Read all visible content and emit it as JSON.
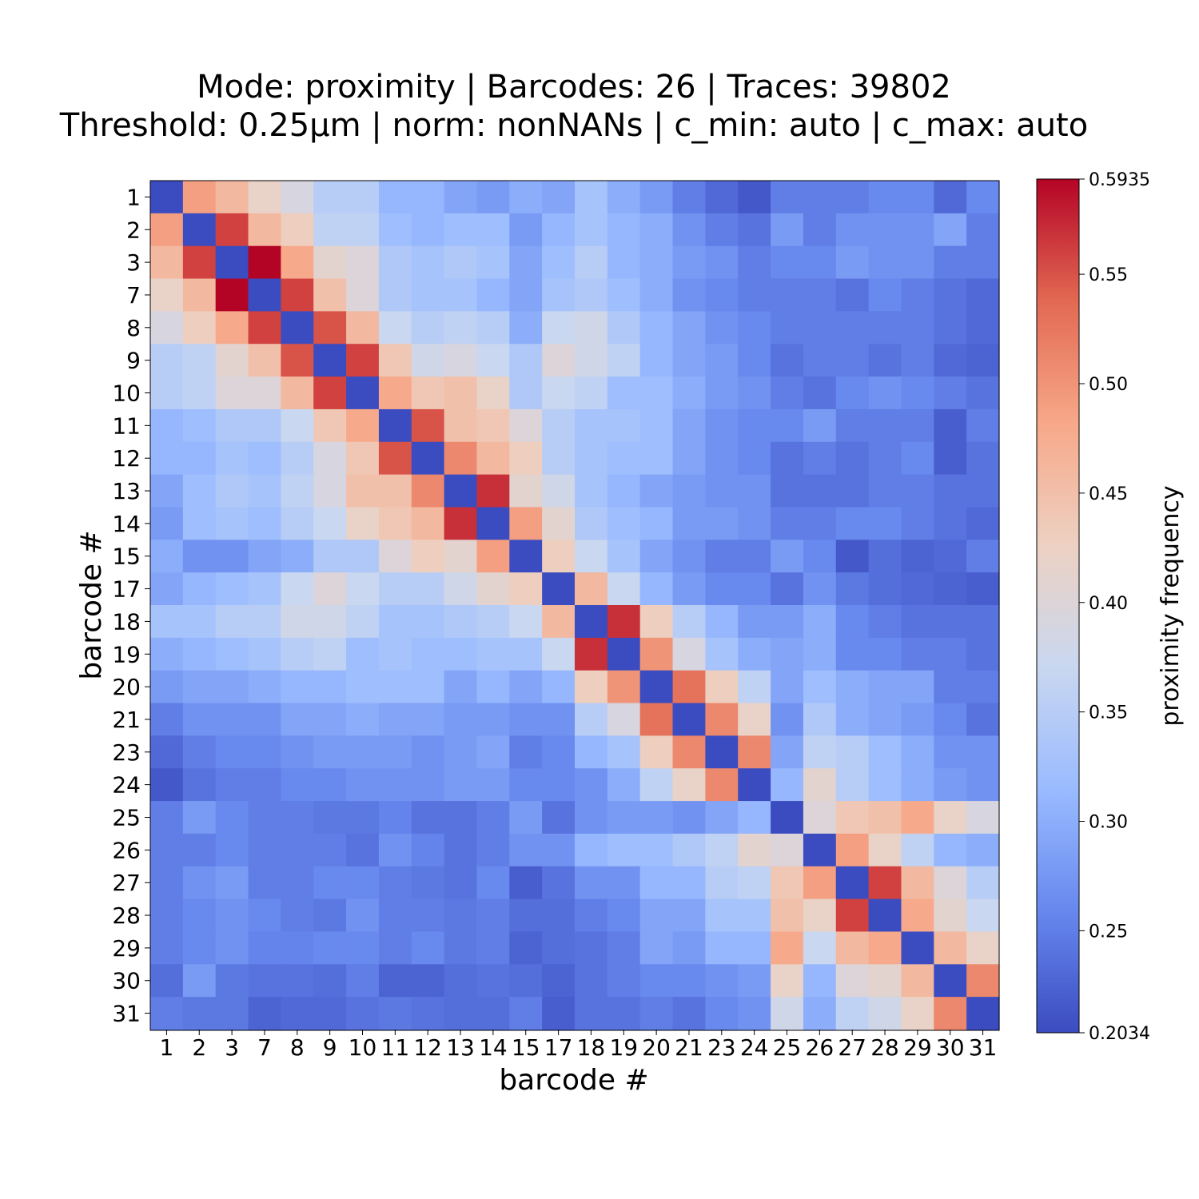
{
  "chart_data": {
    "type": "heatmap",
    "title_lines": [
      "Mode: proximity | Barcodes: 26 | Traces: 39802",
      "Threshold: 0.25µm | norm: nonNANs | c_min: auto | c_max: auto"
    ],
    "xlabel": "barcode #",
    "ylabel": "barcode #",
    "labels": [
      "1",
      "2",
      "3",
      "7",
      "8",
      "9",
      "10",
      "11",
      "12",
      "13",
      "14",
      "15",
      "17",
      "18",
      "19",
      "20",
      "21",
      "23",
      "24",
      "25",
      "26",
      "27",
      "28",
      "29",
      "30",
      "31"
    ],
    "colorbar": {
      "label": "proximity frequency",
      "min": 0.2034,
      "max": 0.5935,
      "min_label": "0.2034",
      "max_label": "0.5935",
      "ticks": [
        "0.25",
        "0.30",
        "0.35",
        "0.40",
        "0.45",
        "0.50",
        "0.55"
      ],
      "colormap": "coolwarm",
      "colors": [
        "#3b4cc0",
        "#6788ee",
        "#9abbff",
        "#c9d7f0",
        "#edd1c2",
        "#f7a889",
        "#e26952",
        "#b40426"
      ]
    },
    "values": [
      [
        0.2034,
        0.49,
        0.46,
        0.42,
        0.39,
        0.35,
        0.35,
        0.31,
        0.31,
        0.29,
        0.28,
        0.3,
        0.29,
        0.33,
        0.3,
        0.28,
        0.25,
        0.23,
        0.215,
        0.25,
        0.25,
        0.25,
        0.26,
        0.26,
        0.23,
        0.26
      ],
      [
        0.49,
        0.2034,
        0.56,
        0.46,
        0.43,
        0.36,
        0.36,
        0.32,
        0.31,
        0.32,
        0.32,
        0.28,
        0.31,
        0.33,
        0.31,
        0.3,
        0.27,
        0.25,
        0.24,
        0.28,
        0.25,
        0.27,
        0.27,
        0.27,
        0.29,
        0.25
      ],
      [
        0.46,
        0.56,
        0.2034,
        0.5935,
        0.48,
        0.41,
        0.4,
        0.34,
        0.33,
        0.34,
        0.33,
        0.29,
        0.32,
        0.35,
        0.31,
        0.3,
        0.28,
        0.27,
        0.25,
        0.26,
        0.26,
        0.28,
        0.27,
        0.27,
        0.25,
        0.25
      ],
      [
        0.42,
        0.46,
        0.5935,
        0.2034,
        0.56,
        0.45,
        0.4,
        0.34,
        0.33,
        0.33,
        0.31,
        0.29,
        0.33,
        0.34,
        0.32,
        0.3,
        0.27,
        0.26,
        0.25,
        0.25,
        0.25,
        0.24,
        0.26,
        0.25,
        0.24,
        0.23
      ],
      [
        0.39,
        0.43,
        0.48,
        0.56,
        0.2034,
        0.55,
        0.46,
        0.37,
        0.35,
        0.36,
        0.35,
        0.3,
        0.37,
        0.38,
        0.34,
        0.31,
        0.29,
        0.27,
        0.26,
        0.25,
        0.25,
        0.25,
        0.25,
        0.25,
        0.24,
        0.23
      ],
      [
        0.35,
        0.36,
        0.41,
        0.45,
        0.55,
        0.2034,
        0.56,
        0.44,
        0.38,
        0.39,
        0.37,
        0.34,
        0.4,
        0.38,
        0.36,
        0.31,
        0.29,
        0.28,
        0.26,
        0.24,
        0.25,
        0.25,
        0.24,
        0.25,
        0.23,
        0.225
      ],
      [
        0.35,
        0.36,
        0.4,
        0.4,
        0.46,
        0.56,
        0.2034,
        0.48,
        0.44,
        0.45,
        0.42,
        0.34,
        0.37,
        0.36,
        0.32,
        0.32,
        0.3,
        0.28,
        0.27,
        0.25,
        0.24,
        0.26,
        0.27,
        0.26,
        0.25,
        0.24
      ],
      [
        0.31,
        0.32,
        0.34,
        0.34,
        0.37,
        0.44,
        0.48,
        0.2034,
        0.55,
        0.45,
        0.44,
        0.4,
        0.35,
        0.33,
        0.33,
        0.32,
        0.29,
        0.27,
        0.26,
        0.26,
        0.28,
        0.25,
        0.25,
        0.25,
        0.22,
        0.25
      ],
      [
        0.31,
        0.31,
        0.33,
        0.32,
        0.35,
        0.39,
        0.44,
        0.55,
        0.2034,
        0.51,
        0.46,
        0.43,
        0.35,
        0.33,
        0.32,
        0.32,
        0.29,
        0.27,
        0.26,
        0.24,
        0.25,
        0.24,
        0.25,
        0.26,
        0.22,
        0.24
      ],
      [
        0.29,
        0.32,
        0.34,
        0.33,
        0.36,
        0.39,
        0.45,
        0.45,
        0.51,
        0.2034,
        0.57,
        0.41,
        0.38,
        0.33,
        0.31,
        0.29,
        0.28,
        0.27,
        0.27,
        0.24,
        0.24,
        0.24,
        0.25,
        0.25,
        0.24,
        0.24
      ],
      [
        0.28,
        0.32,
        0.33,
        0.32,
        0.35,
        0.37,
        0.42,
        0.44,
        0.46,
        0.57,
        0.2034,
        0.49,
        0.41,
        0.34,
        0.32,
        0.31,
        0.28,
        0.28,
        0.27,
        0.25,
        0.25,
        0.26,
        0.26,
        0.25,
        0.24,
        0.23
      ],
      [
        0.3,
        0.27,
        0.27,
        0.29,
        0.3,
        0.34,
        0.34,
        0.4,
        0.43,
        0.41,
        0.49,
        0.2034,
        0.43,
        0.37,
        0.33,
        0.29,
        0.27,
        0.25,
        0.25,
        0.28,
        0.26,
        0.215,
        0.235,
        0.225,
        0.23,
        0.25
      ],
      [
        0.29,
        0.31,
        0.32,
        0.33,
        0.37,
        0.4,
        0.37,
        0.35,
        0.35,
        0.38,
        0.41,
        0.43,
        0.2034,
        0.46,
        0.37,
        0.31,
        0.28,
        0.26,
        0.26,
        0.24,
        0.27,
        0.245,
        0.235,
        0.23,
        0.225,
        0.22
      ],
      [
        0.33,
        0.33,
        0.35,
        0.35,
        0.38,
        0.38,
        0.36,
        0.33,
        0.33,
        0.34,
        0.35,
        0.37,
        0.46,
        0.2034,
        0.57,
        0.43,
        0.35,
        0.31,
        0.28,
        0.28,
        0.3,
        0.26,
        0.25,
        0.24,
        0.24,
        0.24
      ],
      [
        0.3,
        0.31,
        0.32,
        0.33,
        0.35,
        0.36,
        0.32,
        0.33,
        0.32,
        0.32,
        0.33,
        0.33,
        0.37,
        0.57,
        0.2034,
        0.5,
        0.39,
        0.33,
        0.3,
        0.29,
        0.3,
        0.26,
        0.26,
        0.25,
        0.25,
        0.24
      ],
      [
        0.28,
        0.29,
        0.29,
        0.3,
        0.31,
        0.31,
        0.32,
        0.32,
        0.32,
        0.29,
        0.31,
        0.29,
        0.31,
        0.43,
        0.5,
        0.2034,
        0.53,
        0.43,
        0.36,
        0.29,
        0.32,
        0.3,
        0.29,
        0.29,
        0.25,
        0.25
      ],
      [
        0.25,
        0.27,
        0.27,
        0.27,
        0.29,
        0.29,
        0.3,
        0.29,
        0.29,
        0.28,
        0.28,
        0.27,
        0.27,
        0.35,
        0.39,
        0.53,
        0.2034,
        0.51,
        0.42,
        0.27,
        0.34,
        0.3,
        0.29,
        0.28,
        0.26,
        0.24
      ],
      [
        0.23,
        0.25,
        0.26,
        0.26,
        0.27,
        0.28,
        0.28,
        0.28,
        0.27,
        0.28,
        0.29,
        0.25,
        0.26,
        0.31,
        0.33,
        0.43,
        0.51,
        0.2034,
        0.51,
        0.29,
        0.36,
        0.35,
        0.32,
        0.3,
        0.27,
        0.27
      ],
      [
        0.215,
        0.24,
        0.25,
        0.25,
        0.26,
        0.26,
        0.27,
        0.27,
        0.27,
        0.28,
        0.28,
        0.26,
        0.26,
        0.27,
        0.3,
        0.36,
        0.42,
        0.51,
        0.2034,
        0.31,
        0.41,
        0.35,
        0.32,
        0.3,
        0.28,
        0.27
      ],
      [
        0.25,
        0.28,
        0.26,
        0.25,
        0.25,
        0.245,
        0.245,
        0.255,
        0.24,
        0.24,
        0.25,
        0.28,
        0.24,
        0.27,
        0.28,
        0.28,
        0.27,
        0.29,
        0.31,
        0.2034,
        0.4,
        0.44,
        0.45,
        0.48,
        0.42,
        0.39
      ],
      [
        0.25,
        0.25,
        0.26,
        0.25,
        0.25,
        0.25,
        0.24,
        0.27,
        0.255,
        0.24,
        0.25,
        0.27,
        0.27,
        0.31,
        0.32,
        0.32,
        0.34,
        0.36,
        0.41,
        0.4,
        0.2034,
        0.49,
        0.42,
        0.36,
        0.31,
        0.3
      ],
      [
        0.25,
        0.27,
        0.28,
        0.25,
        0.25,
        0.26,
        0.26,
        0.25,
        0.245,
        0.24,
        0.26,
        0.22,
        0.24,
        0.27,
        0.27,
        0.31,
        0.31,
        0.35,
        0.36,
        0.44,
        0.49,
        0.2034,
        0.56,
        0.46,
        0.4,
        0.35
      ],
      [
        0.25,
        0.26,
        0.27,
        0.26,
        0.25,
        0.245,
        0.27,
        0.25,
        0.25,
        0.245,
        0.25,
        0.235,
        0.235,
        0.25,
        0.26,
        0.29,
        0.29,
        0.33,
        0.33,
        0.45,
        0.42,
        0.56,
        0.2034,
        0.48,
        0.41,
        0.37
      ],
      [
        0.25,
        0.26,
        0.27,
        0.255,
        0.255,
        0.26,
        0.26,
        0.25,
        0.26,
        0.245,
        0.25,
        0.225,
        0.235,
        0.24,
        0.25,
        0.29,
        0.28,
        0.31,
        0.31,
        0.48,
        0.37,
        0.46,
        0.48,
        0.2034,
        0.46,
        0.42
      ],
      [
        0.235,
        0.28,
        0.245,
        0.24,
        0.24,
        0.235,
        0.25,
        0.225,
        0.225,
        0.235,
        0.24,
        0.235,
        0.225,
        0.24,
        0.25,
        0.26,
        0.26,
        0.27,
        0.28,
        0.42,
        0.31,
        0.4,
        0.41,
        0.46,
        0.2034,
        0.51
      ],
      [
        0.25,
        0.245,
        0.245,
        0.225,
        0.23,
        0.23,
        0.24,
        0.245,
        0.24,
        0.235,
        0.235,
        0.25,
        0.22,
        0.24,
        0.24,
        0.25,
        0.24,
        0.26,
        0.27,
        0.38,
        0.3,
        0.36,
        0.38,
        0.42,
        0.51,
        0.2034
      ]
    ]
  }
}
